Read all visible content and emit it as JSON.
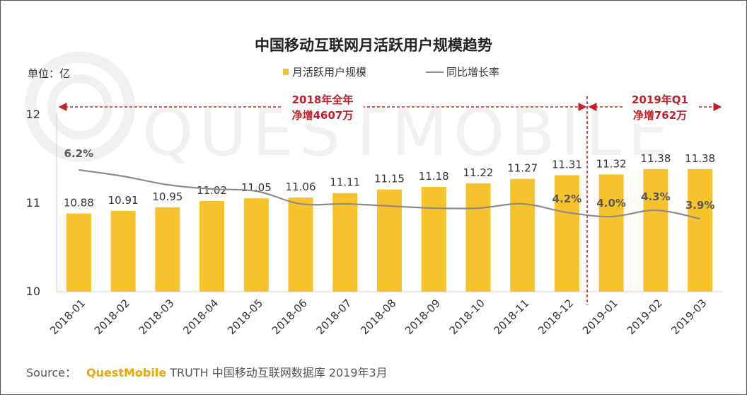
{
  "chart_data": {
    "type": "bar",
    "title": "中国移动互联网月活跃用户规模趋势",
    "unit_label": "单位：亿",
    "categories": [
      "2018-01",
      "2018-02",
      "2018-03",
      "2018-04",
      "2018-05",
      "2018-06",
      "2018-07",
      "2018-08",
      "2018-09",
      "2018-10",
      "2018-11",
      "2018-12",
      "2019-01",
      "2019-02",
      "2019-03"
    ],
    "series": [
      {
        "name": "月活跃用户规模",
        "kind": "bar",
        "color": "#f7c32c",
        "values": [
          10.88,
          10.91,
          10.95,
          11.02,
          11.05,
          11.06,
          11.11,
          11.15,
          11.18,
          11.22,
          11.27,
          11.31,
          11.32,
          11.38,
          11.38
        ],
        "labels": [
          "10.88",
          "10.91",
          "10.95",
          "11.02",
          "11.05",
          "11.06",
          "11.11",
          "11.15",
          "11.18",
          "11.22",
          "11.27",
          "11.31",
          "11.32",
          "11.38",
          "11.38"
        ]
      },
      {
        "name": "同比增长率",
        "kind": "line",
        "color": "#8c8c8c",
        "values": [
          6.2,
          5.9,
          5.5,
          5.3,
          5.2,
          4.6,
          4.6,
          4.5,
          4.4,
          4.4,
          4.6,
          4.2,
          4.0,
          4.3,
          3.9
        ]
      }
    ],
    "line_labels": [
      {
        "index": 0,
        "text": "6.2%"
      },
      {
        "index": 11,
        "text": "4.2%"
      },
      {
        "index": 12,
        "text": "4.0%"
      },
      {
        "index": 13,
        "text": "4.3%"
      },
      {
        "index": 14,
        "text": "3.9%"
      }
    ],
    "ylim": [
      10,
      12
    ],
    "yticks": [
      "10",
      "11",
      "12"
    ],
    "legend_position": "top",
    "grid": false,
    "annotations": [
      {
        "lines": [
          "2018年全年",
          "净增4607万"
        ],
        "color": "#c0202a",
        "span": "2018-01 to 2018-12"
      },
      {
        "lines": [
          "2019年Q1",
          "净增762万"
        ],
        "color": "#c0202a",
        "span": "2019-01 to 2019-03"
      }
    ]
  },
  "watermark": "QUESTMOBILE",
  "source": {
    "prefix": "Source：",
    "brand": "QuestMobile",
    "rest": " TRUTH 中国移动互联网数据库 2019年3月"
  }
}
